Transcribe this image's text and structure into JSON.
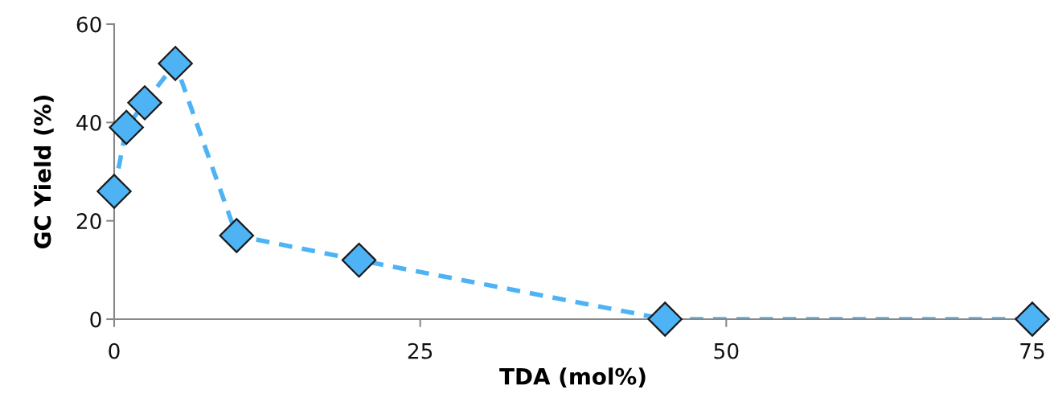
{
  "chart_data": {
    "type": "line",
    "xlabel": "TDA (mol%)",
    "ylabel": "GC Yield (%)",
    "x": [
      0,
      1,
      2.5,
      5,
      10,
      20,
      45,
      75
    ],
    "series": [
      {
        "color": "#4db3f5",
        "values": [
          26,
          39,
          44,
          52,
          17,
          12,
          0,
          0
        ]
      }
    ],
    "xlim": [
      0,
      75
    ],
    "xticks": [
      0,
      25,
      50,
      75
    ],
    "ylim": [
      0,
      60
    ],
    "yticks": [
      0,
      20,
      40,
      60
    ],
    "grid": false,
    "marker": "diamond",
    "line_style": "dashed"
  }
}
